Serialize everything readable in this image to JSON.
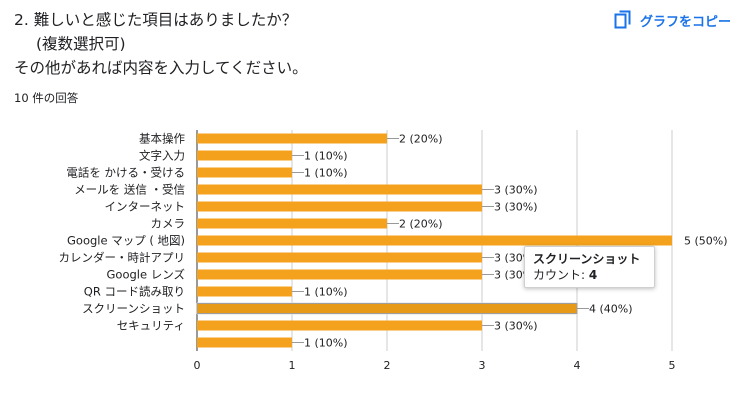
{
  "question": {
    "line1": "2. 難しいと感じた項目はありましたか？",
    "line2": "(複数選択可)",
    "line3": "その他があれば内容を入力してください。"
  },
  "response_count": "10 件の回答",
  "copy_button": {
    "label": "グラフをコピー",
    "icon": "copy-icon",
    "color": "#1a73e8"
  },
  "tooltip": {
    "title": "スクリーンショット",
    "count_label": "カウント: ",
    "count_value": "4"
  },
  "chart_data": {
    "type": "bar",
    "orientation": "horizontal",
    "bar_color": "#f4a21d",
    "highlight_color": "#e69a17",
    "categories": [
      "基本操作",
      "文字入力",
      "電話を かける・受ける",
      "メールを 送信 ・受信",
      "インターネット",
      "カメラ",
      "Google マップ ( 地図)",
      "カレンダー・時計アプリ",
      "Google レンズ",
      "QR コード読み取り",
      "スクリーンショット",
      "セキュリティ",
      ""
    ],
    "values": [
      2,
      1,
      1,
      3,
      3,
      2,
      5,
      3,
      3,
      1,
      4,
      3,
      1
    ],
    "value_labels": [
      "2 (20%)",
      "1 (10%)",
      "1 (10%)",
      "3 (30%)",
      "3 (30%)",
      "2 (20%)",
      "5 (50%)",
      "3 (30%)",
      "3 (30%)",
      "1 (10%)",
      "4 (40%)",
      "3 (30%)",
      "1 (10%)"
    ],
    "highlighted_index": 10,
    "xlim": [
      0,
      5
    ],
    "xticks": [
      "0",
      "1",
      "2",
      "3",
      "4",
      "5"
    ],
    "grid": true
  }
}
